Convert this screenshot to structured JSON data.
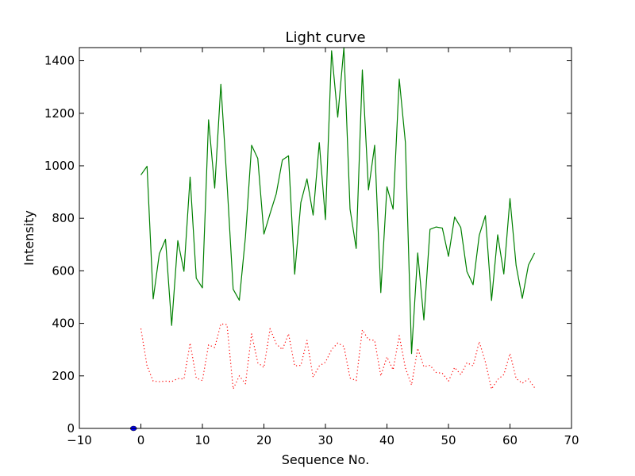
{
  "chart_data": {
    "type": "line",
    "title": "Light curve",
    "xlabel": "Sequence No.",
    "ylabel": "Intensity",
    "xlim": [
      -10,
      70
    ],
    "ylim": [
      0,
      1450
    ],
    "xticks": [
      -10,
      0,
      10,
      20,
      30,
      40,
      50,
      60,
      70
    ],
    "yticks": [
      0,
      200,
      400,
      600,
      800,
      1000,
      1200,
      1400
    ],
    "x": [
      0,
      1,
      2,
      3,
      4,
      5,
      6,
      7,
      8,
      9,
      10,
      11,
      12,
      13,
      14,
      15,
      16,
      17,
      18,
      19,
      20,
      21,
      22,
      23,
      24,
      25,
      26,
      27,
      28,
      29,
      30,
      31,
      32,
      33,
      34,
      35,
      36,
      37,
      38,
      39,
      40,
      41,
      42,
      43,
      44,
      45,
      46,
      47,
      48,
      49,
      50,
      51,
      52,
      53,
      54,
      55,
      56,
      57,
      58,
      59,
      60,
      61,
      62,
      63,
      64
    ],
    "series": [
      {
        "color": "#008000",
        "style": "solid",
        "values": [
          965,
          998,
          493,
          665,
          720,
          392,
          715,
          598,
          957,
          572,
          535,
          1175,
          915,
          1310,
          935,
          530,
          488,
          730,
          1078,
          1028,
          740,
          818,
          893,
          1022,
          1038,
          587,
          860,
          950,
          812,
          1088,
          795,
          1438,
          1185,
          1450,
          835,
          685,
          1365,
          908,
          1078,
          517,
          920,
          835,
          1330,
          1088,
          285,
          668,
          413,
          758,
          767,
          763,
          655,
          805,
          765,
          597,
          547,
          735,
          810,
          487,
          737,
          588,
          875,
          620,
          495,
          622,
          668
        ]
      },
      {
        "color": "#ff0000",
        "style": "dotted",
        "values": [
          380,
          238,
          180,
          178,
          180,
          178,
          190,
          188,
          325,
          192,
          182,
          318,
          308,
          398,
          395,
          150,
          200,
          170,
          360,
          250,
          232,
          380,
          322,
          300,
          360,
          238,
          240,
          335,
          195,
          238,
          252,
          300,
          325,
          312,
          192,
          182,
          375,
          338,
          335,
          200,
          272,
          223,
          353,
          230,
          165,
          305,
          235,
          240,
          213,
          210,
          180,
          232,
          205,
          250,
          238,
          330,
          253,
          150,
          186,
          205,
          285,
          190,
          172,
          188,
          155
        ]
      },
      {
        "color": "#0000ff",
        "style": "marker",
        "x": [
          -1.2
        ],
        "values": [
          0
        ]
      }
    ]
  }
}
